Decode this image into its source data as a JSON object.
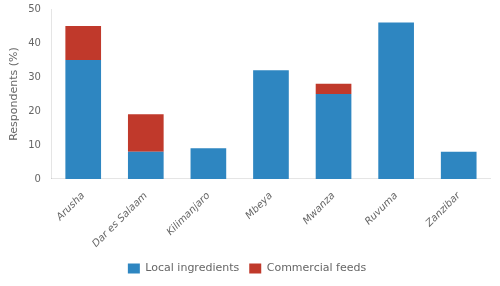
{
  "chart_data": {
    "type": "bar",
    "stacked": true,
    "categories": [
      "Arusha",
      "Dar es Salaam",
      "Kilimanjaro",
      "Mbeya",
      "Mwanza",
      "Ruvuma",
      "Zanzibar"
    ],
    "series": [
      {
        "name": "Local ingredients",
        "color": "#2e86c1",
        "values": [
          35,
          8,
          9,
          32,
          25,
          46,
          8
        ]
      },
      {
        "name": "Commercial feeds",
        "color": "#c0392b",
        "values": [
          10,
          11,
          0,
          0,
          3,
          0,
          0
        ]
      }
    ],
    "ylabel": "Respondents (%)",
    "ylim": [
      0,
      50
    ],
    "yticks": [
      0,
      10,
      20,
      30,
      40,
      50
    ],
    "grid": false,
    "legend": "bottom"
  }
}
